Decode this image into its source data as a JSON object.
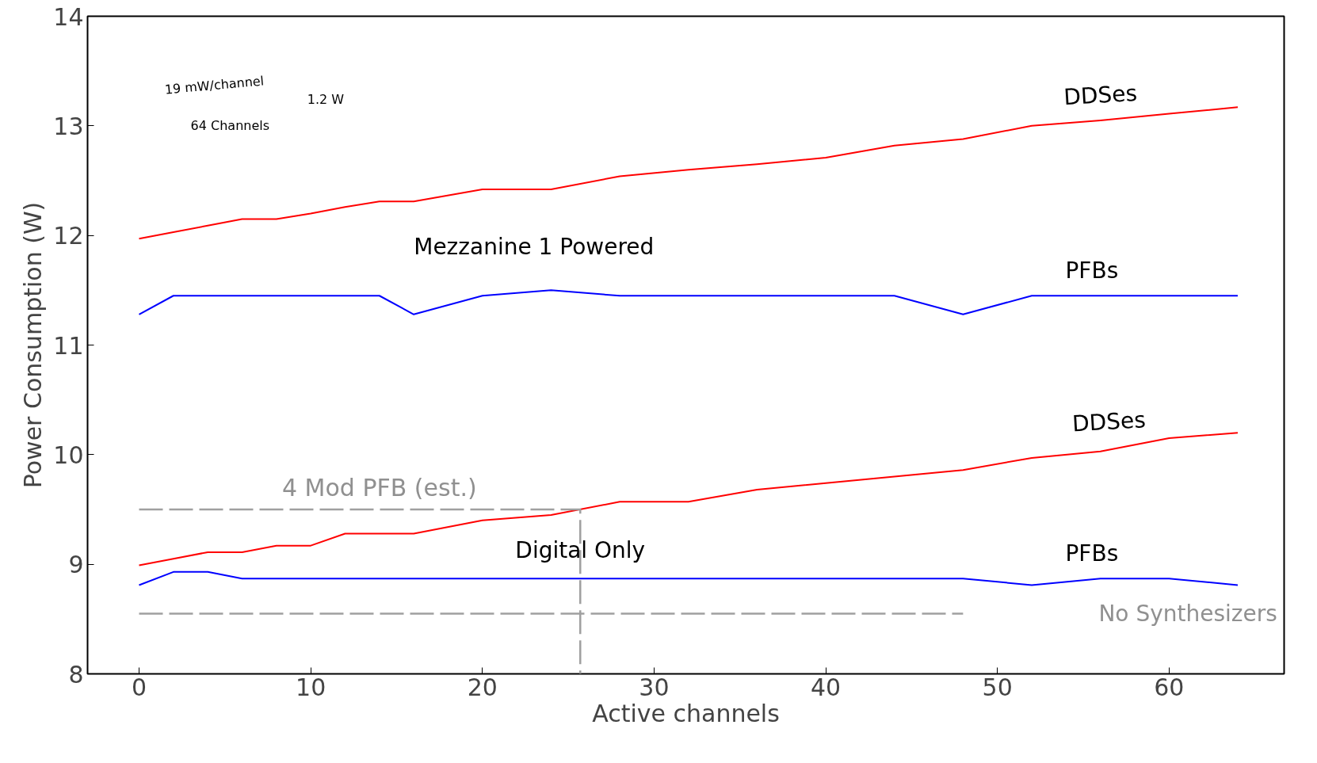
{
  "chart_data": {
    "type": "line",
    "xlabel": "Active channels",
    "ylabel": "Power Consumption (W)",
    "xlim": [
      -3,
      66.7
    ],
    "ylim": [
      8,
      14
    ],
    "xticks": [
      0,
      10,
      20,
      30,
      40,
      50,
      60
    ],
    "yticks": [
      8,
      9,
      10,
      11,
      12,
      13,
      14
    ],
    "grid": false,
    "marker": "none",
    "line_style": "solid",
    "series": [
      {
        "color": "#ff0000",
        "x": [
          0,
          2,
          4,
          6,
          8,
          10,
          12,
          14,
          16,
          20,
          24,
          28,
          32,
          36,
          40,
          44,
          48,
          52,
          56,
          60,
          64
        ],
        "values": [
          11.97,
          12.03,
          12.09,
          12.15,
          12.15,
          12.2,
          12.26,
          12.31,
          12.31,
          12.42,
          12.42,
          12.54,
          12.6,
          12.65,
          12.71,
          12.82,
          12.88,
          13.0,
          13.05,
          13.11,
          13.17
        ]
      },
      {
        "color": "#0000ff",
        "x": [
          0,
          2,
          14,
          16,
          20,
          24,
          28,
          44,
          48,
          52,
          64
        ],
        "values": [
          11.28,
          11.45,
          11.45,
          11.28,
          11.45,
          11.5,
          11.45,
          11.45,
          11.28,
          11.45,
          11.45
        ]
      },
      {
        "color": "#ff0000",
        "x": [
          0,
          2,
          4,
          6,
          8,
          10,
          12,
          16,
          20,
          24,
          28,
          32,
          36,
          40,
          44,
          48,
          52,
          56,
          60,
          64
        ],
        "values": [
          8.99,
          9.05,
          9.11,
          9.11,
          9.17,
          9.17,
          9.28,
          9.28,
          9.4,
          9.45,
          9.57,
          9.57,
          9.68,
          9.74,
          9.8,
          9.86,
          9.97,
          10.03,
          10.15,
          10.2
        ]
      },
      {
        "color": "#0000ff",
        "x": [
          0,
          2,
          4,
          6,
          48,
          52,
          56,
          60,
          64
        ],
        "values": [
          8.81,
          8.93,
          8.93,
          8.87,
          8.87,
          8.81,
          8.87,
          8.87,
          8.81
        ]
      },
      {
        "color": "#a0a0a0",
        "line_style": "dashed",
        "x": [
          0,
          25.7,
          25.7
        ],
        "values": [
          9.5,
          9.5,
          8
        ]
      },
      {
        "color": "#a0a0a0",
        "line_style": "dashed",
        "x": [
          0,
          48
        ],
        "values": [
          8.55,
          8.55
        ]
      }
    ],
    "annotations": [
      "DDSes",
      "PFBs",
      "Mezzanine 1 Powered",
      "DDSes",
      "PFBs",
      "Digital Only",
      "4 Mod PFB (est.)",
      "No Synthesizers",
      "19 mW/channel",
      "1.2 W",
      "64 Channels"
    ]
  }
}
